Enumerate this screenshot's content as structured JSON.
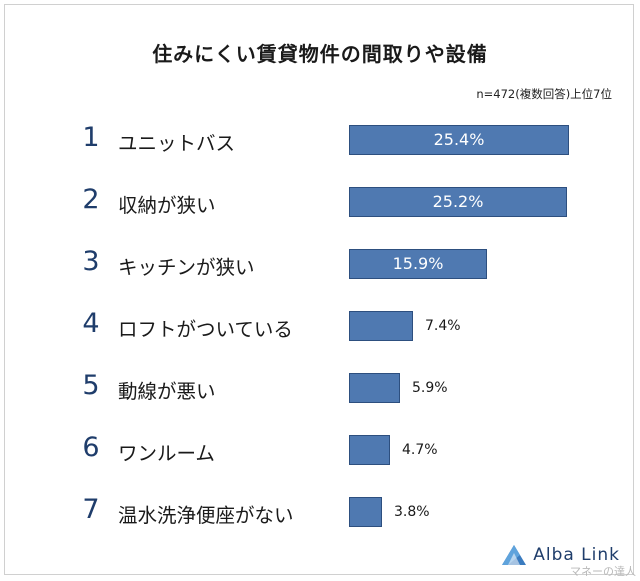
{
  "title": "住みにくい賃貸物件の間取りや設備",
  "note": "n=472(複数回答)上位7位",
  "colors": {
    "bar": "#4f79b1",
    "rank": "#1f3d6b"
  },
  "logo": {
    "name": "Alba Link",
    "icon": "triangle-logo-icon"
  },
  "watermark": "マネーの達人",
  "chart_data": {
    "type": "bar",
    "orientation": "horizontal",
    "ranks": [
      "1",
      "2",
      "3",
      "4",
      "5",
      "6",
      "7"
    ],
    "categories": [
      "ユニットバス",
      "収納が狭い",
      "キッチンが狭い",
      "ロフトがついている",
      "動線が悪い",
      "ワンルーム",
      "温水洗浄便座がない"
    ],
    "values": [
      25.4,
      25.2,
      15.9,
      7.4,
      5.9,
      4.7,
      3.8
    ],
    "value_labels": [
      "25.4%",
      "25.2%",
      "15.9%",
      "7.4%",
      "5.9%",
      "4.7%",
      "3.8%"
    ],
    "unit": "%",
    "xlim": [
      0,
      25.4
    ],
    "grid": false,
    "legend": "none"
  }
}
